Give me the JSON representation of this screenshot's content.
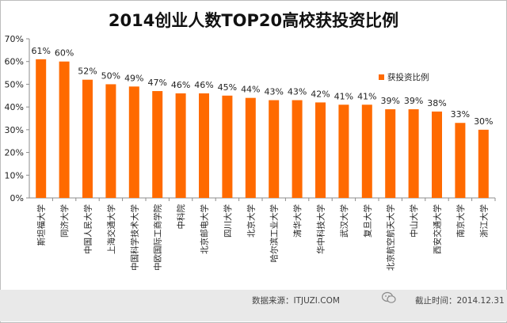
{
  "chart_data": {
    "type": "bar",
    "title": "2014创业人数TOP20高校获投资比例",
    "categories": [
      "斯坦福大学",
      "同济大学",
      "中国人民大学",
      "上海交通大学",
      "中国科学技术大学",
      "中欧国际工商学院",
      "中科院",
      "北京邮电大学",
      "四川大学",
      "北京大学",
      "哈尔滨工业大学",
      "清华大学",
      "华中科技大学",
      "武汉大学",
      "复旦大学",
      "北京航空航天大学",
      "中山大学",
      "西安交通大学",
      "南京大学",
      "浙江大学"
    ],
    "series": [
      {
        "name": "获投资比例",
        "values": [
          61,
          60,
          52,
          50,
          49,
          47,
          46,
          46,
          45,
          44,
          43,
          43,
          42,
          41,
          41,
          39,
          39,
          38,
          33,
          30
        ],
        "labels": [
          "61%",
          "60%",
          "52%",
          "50%",
          "49%",
          "47%",
          "46%",
          "46%",
          "45%",
          "44%",
          "43%",
          "43%",
          "42%",
          "41%",
          "41%",
          "39%",
          "39%",
          "38%",
          "33%",
          "30%"
        ]
      }
    ],
    "yticks": [
      "0%",
      "10%",
      "20%",
      "30%",
      "40%",
      "50%",
      "60%",
      "70%"
    ],
    "ylim": [
      0,
      70
    ],
    "grid": false,
    "legend_position": "right",
    "bar_color": "#ff6a00"
  },
  "footer": {
    "source": "数据来源：ITJUZI.COM",
    "time": "截止时间：2014.12.31"
  }
}
